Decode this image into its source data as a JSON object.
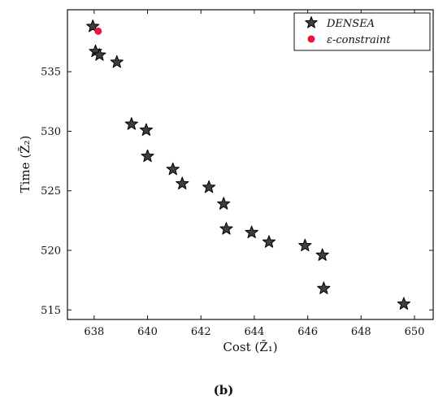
{
  "chart_data": {
    "type": "scatter",
    "xlabel": "Cost (Z̄₁)",
    "ylabel": "Time (Z̄₂)",
    "xlim": [
      637,
      650.7
    ],
    "ylim": [
      514.2,
      540.2
    ],
    "xticks": [
      638,
      640,
      642,
      644,
      646,
      648,
      650
    ],
    "yticks": [
      515,
      520,
      525,
      530,
      535
    ],
    "grid": false,
    "legend_position": "top-right",
    "series": [
      {
        "name": "DENSEA",
        "marker": "star",
        "color": "#3a3f42",
        "points": [
          [
            637.95,
            538.8
          ],
          [
            638.05,
            536.7
          ],
          [
            638.2,
            536.4
          ],
          [
            638.85,
            535.8
          ],
          [
            639.4,
            530.6
          ],
          [
            639.95,
            530.1
          ],
          [
            640.0,
            527.9
          ],
          [
            640.95,
            526.8
          ],
          [
            641.3,
            525.6
          ],
          [
            642.3,
            525.3
          ],
          [
            642.85,
            523.9
          ],
          [
            642.95,
            521.8
          ],
          [
            643.9,
            521.5
          ],
          [
            644.55,
            520.7
          ],
          [
            645.9,
            520.4
          ],
          [
            646.55,
            519.6
          ],
          [
            646.6,
            516.8
          ],
          [
            649.6,
            515.5
          ]
        ]
      },
      {
        "name": "ε-constraint",
        "marker": "circle",
        "color": "#e8163c",
        "points": [
          [
            638.15,
            538.4
          ]
        ]
      }
    ]
  },
  "caption": "(b)"
}
